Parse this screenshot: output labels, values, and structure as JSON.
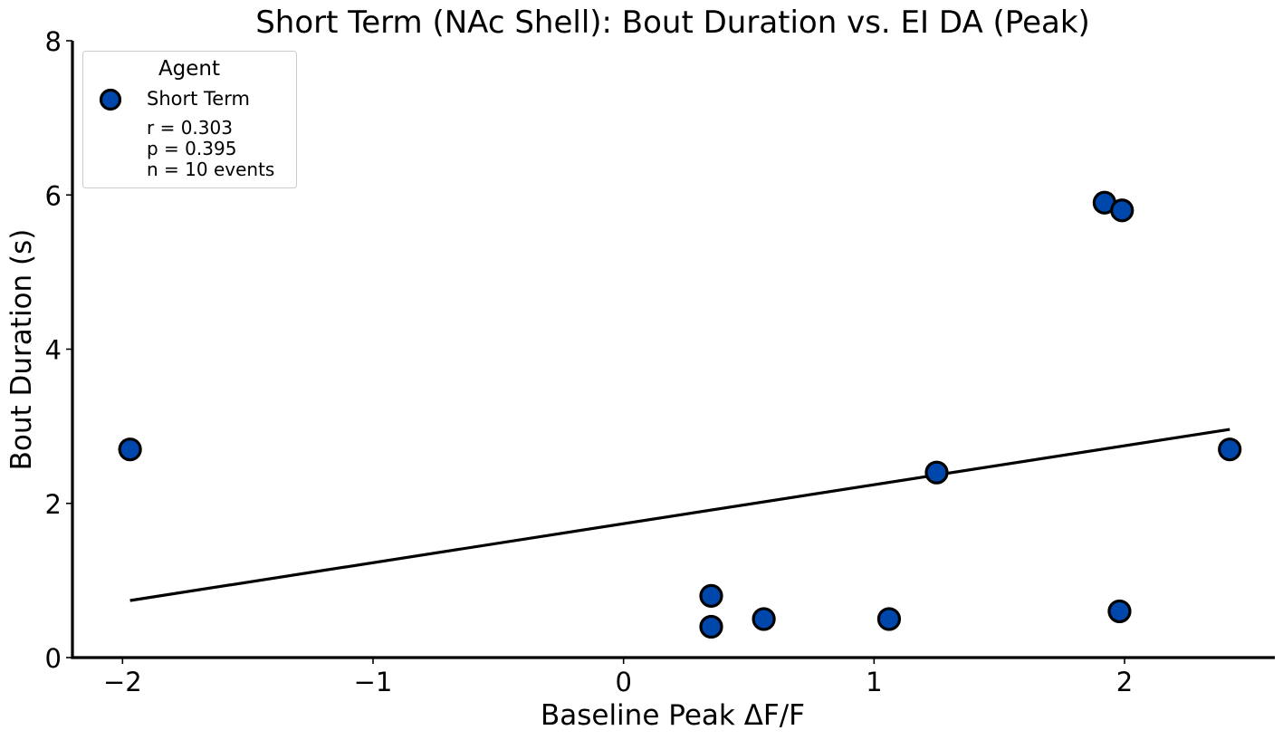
{
  "chart_data": {
    "type": "scatter",
    "title": "Short Term (NAc Shell): Bout Duration vs. EI DA (Peak)",
    "xlabel": "Baseline Peak ΔF/F",
    "ylabel": "Bout Duration (s)",
    "xlim": [
      -2.2,
      2.6
    ],
    "ylim": [
      0,
      8
    ],
    "xticks": [
      -2,
      -1,
      0,
      1,
      2
    ],
    "xtick_labels": [
      "−2",
      "−1",
      "0",
      "1",
      "2"
    ],
    "yticks": [
      0,
      2,
      4,
      6,
      8
    ],
    "ytick_labels": [
      "0",
      "2",
      "4",
      "6",
      "8"
    ],
    "grid": false,
    "legend": {
      "title": "Agent",
      "position": "top-left",
      "entries": [
        "Short Term"
      ],
      "stats_lines": [
        "r = 0.303",
        "p = 0.395",
        "n = 10 events"
      ]
    },
    "series": [
      {
        "name": "Short Term",
        "color": "#0047AB",
        "edge_color": "#000000",
        "points": [
          {
            "x": -1.97,
            "y": 2.7
          },
          {
            "x": 0.35,
            "y": 0.8
          },
          {
            "x": 0.35,
            "y": 0.4
          },
          {
            "x": 0.56,
            "y": 0.5
          },
          {
            "x": 1.06,
            "y": 0.5
          },
          {
            "x": 1.25,
            "y": 2.4
          },
          {
            "x": 1.92,
            "y": 5.9
          },
          {
            "x": 1.99,
            "y": 5.8
          },
          {
            "x": 1.98,
            "y": 0.6
          },
          {
            "x": 2.42,
            "y": 2.7
          }
        ]
      }
    ],
    "fit_line": {
      "color": "#000000",
      "x": [
        -1.97,
        2.42
      ],
      "y": [
        0.74,
        2.96
      ]
    }
  }
}
